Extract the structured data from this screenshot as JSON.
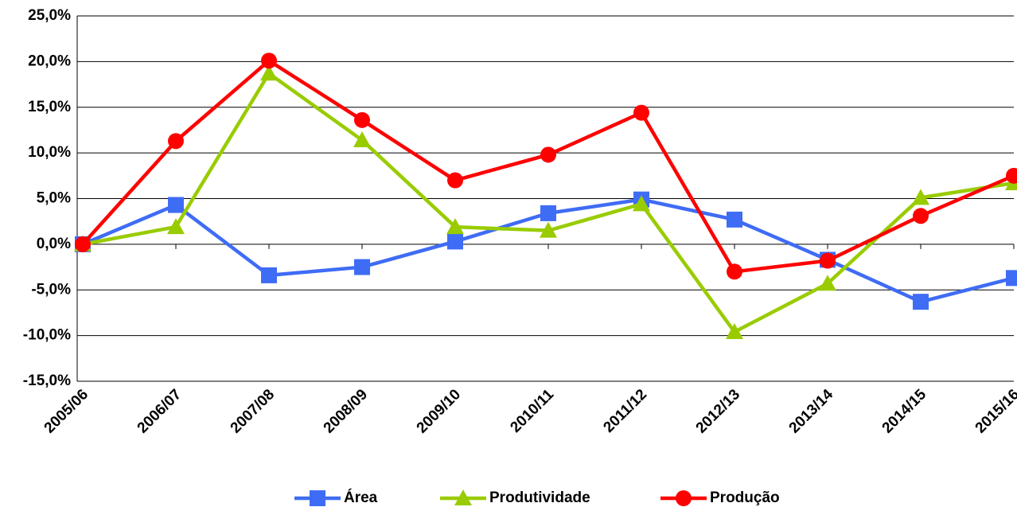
{
  "chart_data": {
    "type": "line",
    "categories": [
      "2005/06",
      "2006/07",
      "2007/08",
      "2008/09",
      "2009/10",
      "2010/11",
      "2011/12",
      "2012/13",
      "2013/14",
      "2014/15",
      "2015/16"
    ],
    "series": [
      {
        "name": "Área",
        "color": "#3f6cf5",
        "marker": "square",
        "values": [
          0,
          4.3,
          -3.4,
          -2.5,
          0.3,
          3.4,
          4.9,
          2.7,
          -1.7,
          -6.3,
          -3.7
        ]
      },
      {
        "name": "Produtividade",
        "color": "#99cc00",
        "marker": "triangle",
        "values": [
          0,
          1.9,
          18.7,
          11.4,
          1.9,
          1.5,
          4.4,
          -9.6,
          -4.3,
          5.1,
          6.7
        ]
      },
      {
        "name": "Produção",
        "color": "#ff0000",
        "marker": "circle",
        "values": [
          0,
          11.3,
          20.1,
          13.6,
          7.0,
          9.8,
          14.4,
          -3.0,
          -1.8,
          3.1,
          7.5
        ]
      }
    ],
    "ylim": [
      -15,
      25
    ],
    "yticks": [
      {
        "value": -15,
        "label": "-15,0%"
      },
      {
        "value": -10,
        "label": "-10,0%"
      },
      {
        "value": -5,
        "label": "-5,0%"
      },
      {
        "value": 0,
        "label": "0,0%"
      },
      {
        "value": 5,
        "label": "5,0%"
      },
      {
        "value": 10,
        "label": "10,0%"
      },
      {
        "value": 15,
        "label": "15,0%"
      },
      {
        "value": 20,
        "label": "20,0%"
      },
      {
        "value": 25,
        "label": "25,0%"
      }
    ],
    "grid": true,
    "legend": "bottom"
  }
}
